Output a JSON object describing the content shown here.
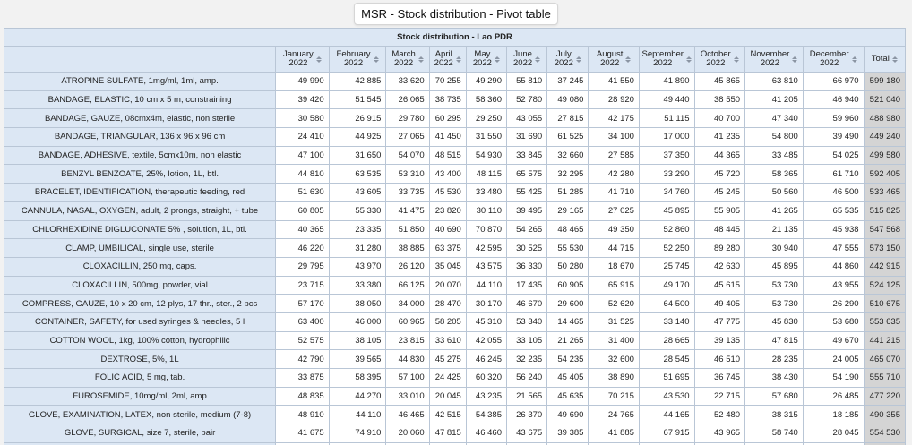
{
  "page_title": "MSR - Stock distribution - Pivot table",
  "table": {
    "caption": "Stock distribution - Lao PDR",
    "columns": [
      {
        "line1": "January",
        "line2": "2022"
      },
      {
        "line1": "February",
        "line2": "2022"
      },
      {
        "line1": "March",
        "line2": "2022"
      },
      {
        "line1": "April",
        "line2": "2022"
      },
      {
        "line1": "May",
        "line2": "2022"
      },
      {
        "line1": "June",
        "line2": "2022"
      },
      {
        "line1": "July",
        "line2": "2022"
      },
      {
        "line1": "August",
        "line2": "2022"
      },
      {
        "line1": "September",
        "line2": "2022"
      },
      {
        "line1": "October",
        "line2": "2022"
      },
      {
        "line1": "November",
        "line2": "2022"
      },
      {
        "line1": "December",
        "line2": "2022"
      }
    ],
    "total_label": "Total",
    "rows": [
      {
        "label": "ATROPINE SULFATE, 1mg/ml, 1ml, amp.",
        "values": [
          "49 990",
          "42 885",
          "33 620",
          "70 255",
          "49 290",
          "55 810",
          "37 245",
          "41 550",
          "41 890",
          "45 865",
          "63 810",
          "66 970"
        ],
        "total": "599 180"
      },
      {
        "label": "BANDAGE, ELASTIC, 10 cm x 5 m, constraining",
        "values": [
          "39 420",
          "51 545",
          "26 065",
          "38 735",
          "58 360",
          "52 780",
          "49 080",
          "28 920",
          "49 440",
          "38 550",
          "41 205",
          "46 940"
        ],
        "total": "521 040"
      },
      {
        "label": "BANDAGE, GAUZE, 08cmx4m, elastic, non sterile",
        "values": [
          "30 580",
          "26 915",
          "29 780",
          "60 295",
          "29 250",
          "43 055",
          "27 815",
          "42 175",
          "51 115",
          "40 700",
          "47 340",
          "59 960"
        ],
        "total": "488 980"
      },
      {
        "label": "BANDAGE, TRIANGULAR, 136 x 96 x 96 cm",
        "values": [
          "24 410",
          "44 925",
          "27 065",
          "41 450",
          "31 550",
          "31 690",
          "61 525",
          "34 100",
          "17 000",
          "41 235",
          "54 800",
          "39 490"
        ],
        "total": "449 240"
      },
      {
        "label": "BANDAGE, ADHESIVE, textile, 5cmx10m, non elastic",
        "values": [
          "47 100",
          "31 650",
          "54 070",
          "48 515",
          "54 930",
          "33 845",
          "32 660",
          "27 585",
          "37 350",
          "44 365",
          "33 485",
          "54 025"
        ],
        "total": "499 580"
      },
      {
        "label": "BENZYL BENZOATE, 25%, lotion, 1L, btl.",
        "values": [
          "44 810",
          "63 535",
          "53 310",
          "43 400",
          "48 115",
          "65 575",
          "32 295",
          "42 280",
          "33 290",
          "45 720",
          "58 365",
          "61 710"
        ],
        "total": "592 405"
      },
      {
        "label": "BRACELET, IDENTIFICATION, therapeutic feeding, red",
        "values": [
          "51 630",
          "43 605",
          "33 735",
          "45 530",
          "33 480",
          "55 425",
          "51 285",
          "41 710",
          "34 760",
          "45 245",
          "50 560",
          "46 500"
        ],
        "total": "533 465"
      },
      {
        "label": "CANNULA, NASAL, OXYGEN, adult, 2 prongs, straight, + tube",
        "values": [
          "60 805",
          "55 330",
          "41 475",
          "23 820",
          "30 110",
          "39 495",
          "29 165",
          "27 025",
          "45 895",
          "55 905",
          "41 265",
          "65 535"
        ],
        "total": "515 825"
      },
      {
        "label": "CHLORHEXIDINE DIGLUCONATE 5% , solution, 1L, btl.",
        "values": [
          "40 365",
          "23 335",
          "51 850",
          "40 690",
          "70 870",
          "54 265",
          "48 465",
          "49 350",
          "52 860",
          "48 445",
          "21 135",
          "45 938"
        ],
        "total": "547 568"
      },
      {
        "label": "CLAMP, UMBILICAL, single use, sterile",
        "values": [
          "46 220",
          "31 280",
          "38 885",
          "63 375",
          "42 595",
          "30 525",
          "55 530",
          "44 715",
          "52 250",
          "89 280",
          "30 940",
          "47 555"
        ],
        "total": "573 150"
      },
      {
        "label": "CLOXACILLIN, 250 mg, caps.",
        "values": [
          "29 795",
          "43 970",
          "26 120",
          "35 045",
          "43 575",
          "36 330",
          "50 280",
          "18 670",
          "25 745",
          "42 630",
          "45 895",
          "44 860"
        ],
        "total": "442 915"
      },
      {
        "label": "CLOXACILLIN, 500mg, powder, vial",
        "values": [
          "23 715",
          "33 380",
          "66 125",
          "20 070",
          "44 110",
          "17 435",
          "60 905",
          "65 915",
          "49 170",
          "45 615",
          "53 730",
          "43 955"
        ],
        "total": "524 125"
      },
      {
        "label": "COMPRESS, GAUZE, 10 x 20 cm, 12 plys, 17 thr., ster., 2 pcs",
        "values": [
          "57 170",
          "38 050",
          "34 000",
          "28 470",
          "30 170",
          "46 670",
          "29 600",
          "52 620",
          "64 500",
          "49 405",
          "53 730",
          "26 290"
        ],
        "total": "510 675"
      },
      {
        "label": "CONTAINER, SAFETY, for used syringes & needles, 5 l",
        "values": [
          "63 400",
          "46 000",
          "60 965",
          "58 205",
          "45 310",
          "53 340",
          "14 465",
          "31 525",
          "33 140",
          "47 775",
          "45 830",
          "53 680"
        ],
        "total": "553 635"
      },
      {
        "label": "COTTON WOOL, 1kg, 100% cotton, hydrophilic",
        "values": [
          "52 575",
          "38 105",
          "23 815",
          "33 610",
          "42 055",
          "33 105",
          "21 265",
          "31 400",
          "28 665",
          "39 135",
          "47 815",
          "49 670"
        ],
        "total": "441 215"
      },
      {
        "label": "DEXTROSE, 5%, 1L",
        "values": [
          "42 790",
          "39 565",
          "44 830",
          "45 275",
          "46 245",
          "32 235",
          "54 235",
          "32 600",
          "28 545",
          "46 510",
          "28 235",
          "24 005"
        ],
        "total": "465 070"
      },
      {
        "label": "FOLIC ACID, 5 mg, tab.",
        "values": [
          "33 875",
          "58 395",
          "57 100",
          "24 425",
          "60 320",
          "56 240",
          "45 405",
          "38 890",
          "51 695",
          "36 745",
          "38 430",
          "54 190"
        ],
        "total": "555 710"
      },
      {
        "label": "FUROSEMIDE, 10mg/ml, 2ml, amp",
        "values": [
          "48 835",
          "44 270",
          "33 010",
          "20 045",
          "43 235",
          "21 565",
          "45 635",
          "70 215",
          "43 530",
          "22 715",
          "57 680",
          "26 485"
        ],
        "total": "477 220"
      },
      {
        "label": "GLOVE, EXAMINATION, LATEX, non sterile, medium (7-8)",
        "values": [
          "48 910",
          "44 110",
          "46 465",
          "42 515",
          "54 385",
          "26 370",
          "49 690",
          "24 765",
          "44 165",
          "52 480",
          "38 315",
          "18 185"
        ],
        "total": "490 355"
      },
      {
        "label": "GLOVE, SURGICAL, size 7, sterile, pair",
        "values": [
          "41 675",
          "74 910",
          "20 060",
          "47 815",
          "46 460",
          "43 675",
          "39 385",
          "41 885",
          "67 915",
          "43 965",
          "58 740",
          "28 045"
        ],
        "total": "554 530"
      },
      {
        "label": "",
        "values": [
          "",
          "",
          "",
          "",
          "",
          "",
          "",
          "",
          "",
          "",
          "",
          ""
        ],
        "total": ""
      }
    ]
  }
}
